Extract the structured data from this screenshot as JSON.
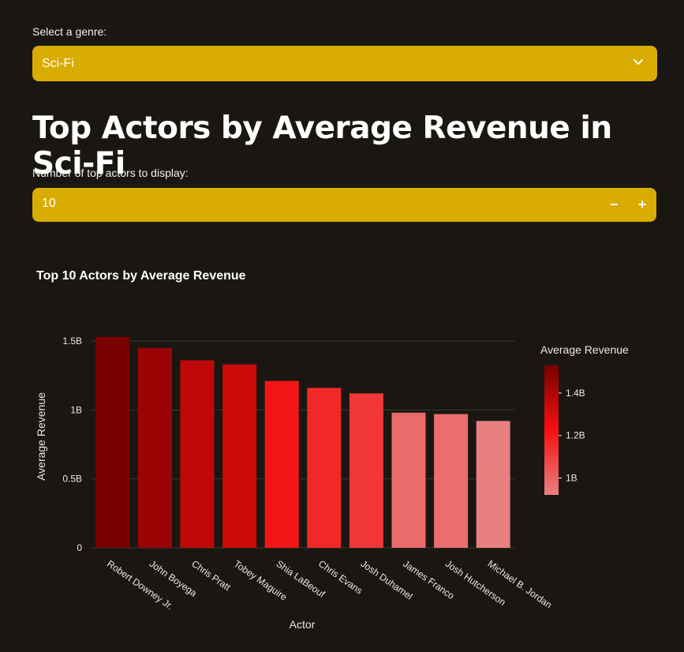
{
  "controls": {
    "genre_label": "Select a genre:",
    "genre_value": "Sci-Fi",
    "count_label": "Number of top actors to display:",
    "count_value": "10",
    "minus_label": "−",
    "plus_label": "+"
  },
  "page_title": "Top Actors by Average Revenue in Sci-Fi",
  "chart_data": {
    "type": "bar",
    "title": "Top 10 Actors by Average Revenue",
    "xlabel": "Actor",
    "ylabel": "Average Revenue",
    "ylim": [
      0,
      1.5
    ],
    "y_unit": "B",
    "yticks": [
      "0",
      "0.5B",
      "1B",
      "1.5B"
    ],
    "categories": [
      "Robert Downey Jr.",
      "John Boyega",
      "Chris Pratt",
      "Tobey Maguire",
      "Shia LaBeouf",
      "Chris Evans",
      "Josh Duhamel",
      "James Franco",
      "Josh Hutcherson",
      "Michael B. Jordan"
    ],
    "values": [
      1.53,
      1.45,
      1.36,
      1.33,
      1.21,
      1.16,
      1.12,
      0.98,
      0.97,
      0.92
    ],
    "grid": true,
    "colorbar": {
      "title": "Average Revenue",
      "ticks": [
        "1B",
        "1.2B",
        "1.4B"
      ],
      "tick_values": [
        1.0,
        1.2,
        1.4
      ],
      "range": [
        0.92,
        1.53
      ],
      "colors": [
        "#e88080",
        "#f51010",
        "#7a0000"
      ]
    }
  }
}
